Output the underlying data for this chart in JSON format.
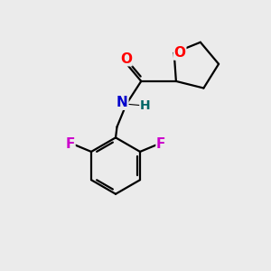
{
  "background_color": "#ebebeb",
  "atom_colors": {
    "C": "#000000",
    "N": "#0000cc",
    "O": "#ff0000",
    "F": "#cc00cc",
    "H": "#006666"
  },
  "figsize": [
    3.0,
    3.0
  ],
  "dpi": 100,
  "lw": 1.6,
  "fontsize": 11
}
